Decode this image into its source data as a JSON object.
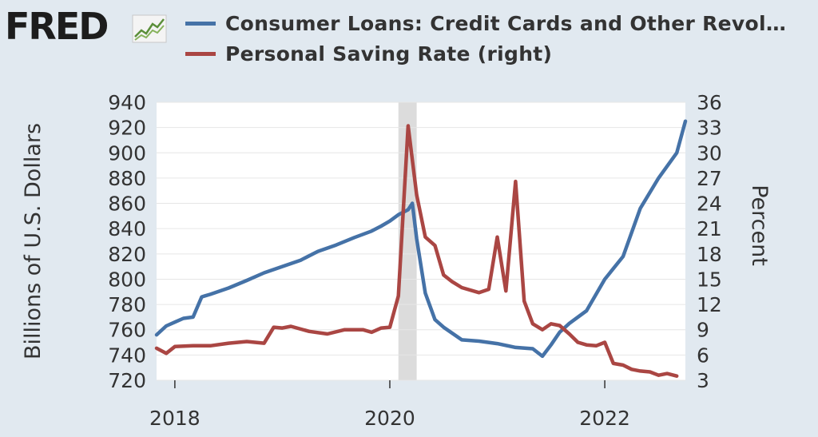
{
  "brand": {
    "logo_text": "FRED",
    "logo_mark": "fred-chart-icon"
  },
  "colors": {
    "blue_series": "#4572a7",
    "red_series": "#aa4643",
    "background": "#e1e9f0",
    "plot_bg": "#ffffff",
    "recession": "#dcdcdc"
  },
  "chart_data": {
    "type": "line",
    "title": "",
    "xlabel": "",
    "ylabel_left": "Billions of U.S. Dollars",
    "ylabel_right": "Percent",
    "xlim": [
      2017.83,
      2022.75
    ],
    "ylim_left": [
      720,
      940
    ],
    "ylim_right": [
      3,
      36
    ],
    "x_ticks": [
      2018,
      2020,
      2022
    ],
    "x_tick_labels": [
      "2018",
      "2020",
      "2022"
    ],
    "y_left_ticks": [
      720,
      740,
      760,
      780,
      800,
      820,
      840,
      860,
      880,
      900,
      920,
      940
    ],
    "y_right_ticks": [
      3,
      6,
      9,
      12,
      15,
      18,
      21,
      24,
      27,
      30,
      33,
      36
    ],
    "grid": "horizontal",
    "recession_shading": [
      [
        2020.08,
        2020.25
      ]
    ],
    "legend_position": "top",
    "series": [
      {
        "name": "Consumer Loans: Credit Cards and Other Revol…",
        "axis": "left",
        "color": "#4572a7",
        "x": [
          2017.83,
          2017.92,
          2018.0,
          2018.08,
          2018.17,
          2018.25,
          2018.33,
          2018.5,
          2018.67,
          2018.83,
          2019.0,
          2019.17,
          2019.33,
          2019.5,
          2019.67,
          2019.83,
          2019.92,
          2020.0,
          2020.08,
          2020.17,
          2020.21,
          2020.25,
          2020.33,
          2020.42,
          2020.5,
          2020.67,
          2020.83,
          2021.0,
          2021.17,
          2021.33,
          2021.42,
          2021.5,
          2021.58,
          2021.67,
          2021.83,
          2022.0,
          2022.17,
          2022.33,
          2022.5,
          2022.67,
          2022.75
        ],
        "y": [
          756,
          763,
          766,
          769,
          770,
          786,
          788,
          793,
          799,
          805,
          810,
          815,
          822,
          827,
          833,
          838,
          842,
          846,
          851,
          855,
          860,
          832,
          789,
          768,
          762,
          752,
          751,
          749,
          746,
          745,
          739,
          748,
          758,
          765,
          775,
          800,
          818,
          856,
          880,
          900,
          925
        ]
      },
      {
        "name": "Personal Saving Rate (right)",
        "axis": "right",
        "color": "#aa4643",
        "x": [
          2017.83,
          2017.92,
          2018.0,
          2018.17,
          2018.33,
          2018.5,
          2018.67,
          2018.83,
          2018.92,
          2019.0,
          2019.08,
          2019.25,
          2019.42,
          2019.58,
          2019.75,
          2019.83,
          2019.92,
          2020.0,
          2020.08,
          2020.17,
          2020.25,
          2020.33,
          2020.42,
          2020.5,
          2020.58,
          2020.67,
          2020.83,
          2020.92,
          2021.0,
          2021.08,
          2021.17,
          2021.25,
          2021.33,
          2021.42,
          2021.5,
          2021.58,
          2021.67,
          2021.75,
          2021.83,
          2021.92,
          2022.0,
          2022.08,
          2022.17,
          2022.25,
          2022.33,
          2022.42,
          2022.5,
          2022.58,
          2022.67
        ],
        "y": [
          6.8,
          6.2,
          7.0,
          7.1,
          7.1,
          7.4,
          7.6,
          7.4,
          9.3,
          9.2,
          9.4,
          8.8,
          8.5,
          9.0,
          9.0,
          8.7,
          9.2,
          9.3,
          13.0,
          33.2,
          25.0,
          20.0,
          19.0,
          15.5,
          14.7,
          14.0,
          13.4,
          13.8,
          20.0,
          13.6,
          26.6,
          12.4,
          9.7,
          9.0,
          9.7,
          9.5,
          8.5,
          7.5,
          7.2,
          7.1,
          7.5,
          5.0,
          4.8,
          4.3,
          4.1,
          4.0,
          3.6,
          3.8,
          3.5
        ]
      }
    ]
  }
}
